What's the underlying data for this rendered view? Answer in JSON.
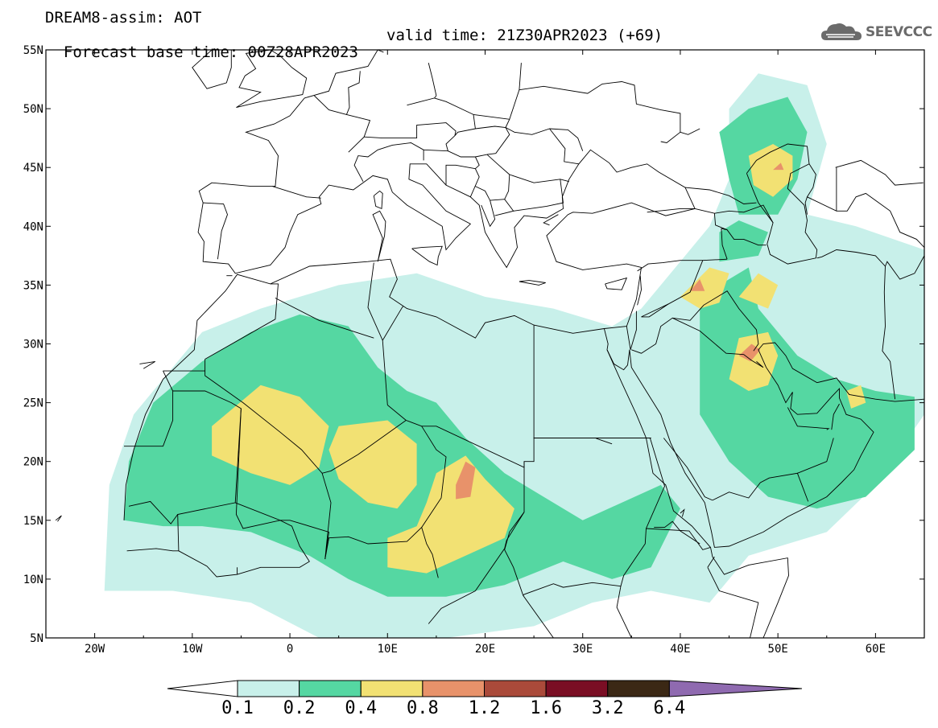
{
  "header": {
    "line1": "DREAM8-assim: AOT",
    "line2_base": "Forecast base time: 00Z28APR2023",
    "line2_valid": "valid time: 21Z30APR2023 (+69)"
  },
  "logo": {
    "text": "SEEVCCC",
    "icon": "cloud-logo-icon"
  },
  "chart_data": {
    "type": "heatmap",
    "title": "DREAM8-assim: AOT",
    "projection": "lat-lon",
    "xlim": [
      -25,
      65
    ],
    "ylim": [
      5,
      55
    ],
    "lon_ticks": [
      "20W",
      "10W",
      "0",
      "10E",
      "20E",
      "30E",
      "40E",
      "50E",
      "60E"
    ],
    "lat_ticks": [
      "5N",
      "10N",
      "15N",
      "20N",
      "25N",
      "30N",
      "35N",
      "40N",
      "45N",
      "50N",
      "55N"
    ],
    "colorbar": {
      "levels": [
        "0.1",
        "0.2",
        "0.4",
        "0.8",
        "1.2",
        "1.6",
        "3.2",
        "6.4"
      ],
      "colors": [
        "#c8f0ea",
        "#55d7a2",
        "#f2e173",
        "#e8926a",
        "#aa4a3a",
        "#7a0e24",
        "#3b2815",
        "#8f6ab0"
      ],
      "extends": "both"
    }
  }
}
